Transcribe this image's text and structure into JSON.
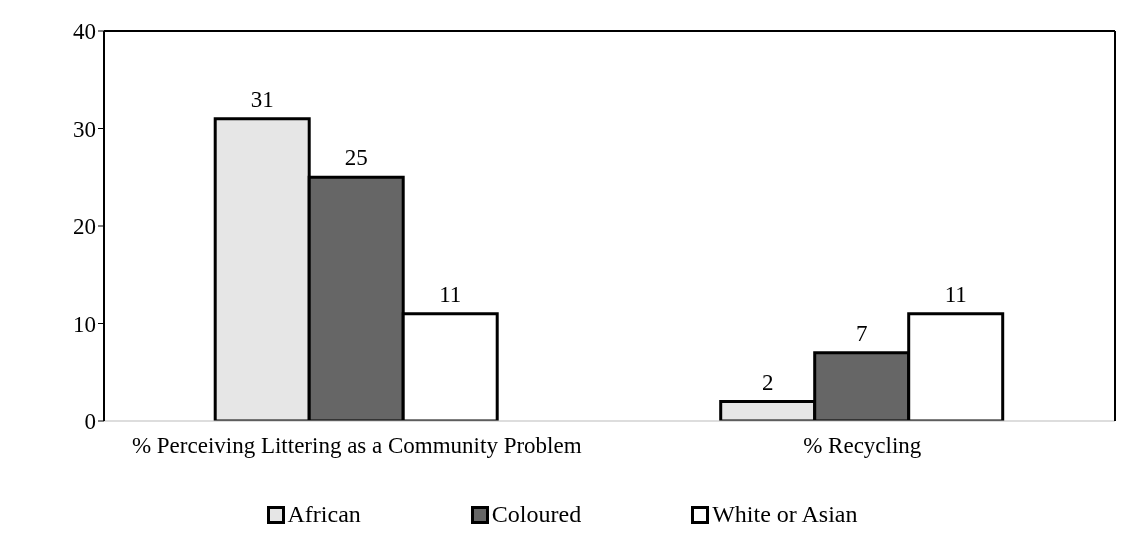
{
  "chart_data": {
    "type": "bar",
    "categories": [
      "% Perceiving Littering as a Community Problem",
      "% Recycling"
    ],
    "series": [
      {
        "name": "African",
        "color": "#e6e6e6",
        "values": [
          31,
          2
        ]
      },
      {
        "name": "Coloured",
        "color": "#666666",
        "values": [
          25,
          7
        ]
      },
      {
        "name": "White or Asian",
        "color": "#ffffff",
        "values": [
          11,
          11
        ]
      }
    ],
    "ylim": [
      0,
      40
    ],
    "yticks": [
      0,
      10,
      20,
      30,
      40
    ],
    "legend": "bottom",
    "data_labels": true
  }
}
